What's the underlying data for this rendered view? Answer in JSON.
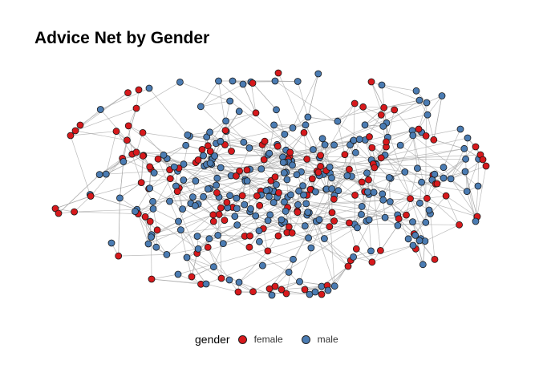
{
  "title": "Advice Net by Gender",
  "legend": {
    "title": "gender",
    "items": [
      {
        "label": "female",
        "color": "#d7191c"
      },
      {
        "label": "male",
        "color": "#4b7cb3"
      }
    ]
  },
  "edge_color": "#a6a6a6",
  "node_stroke": "#1a1a1a"
}
